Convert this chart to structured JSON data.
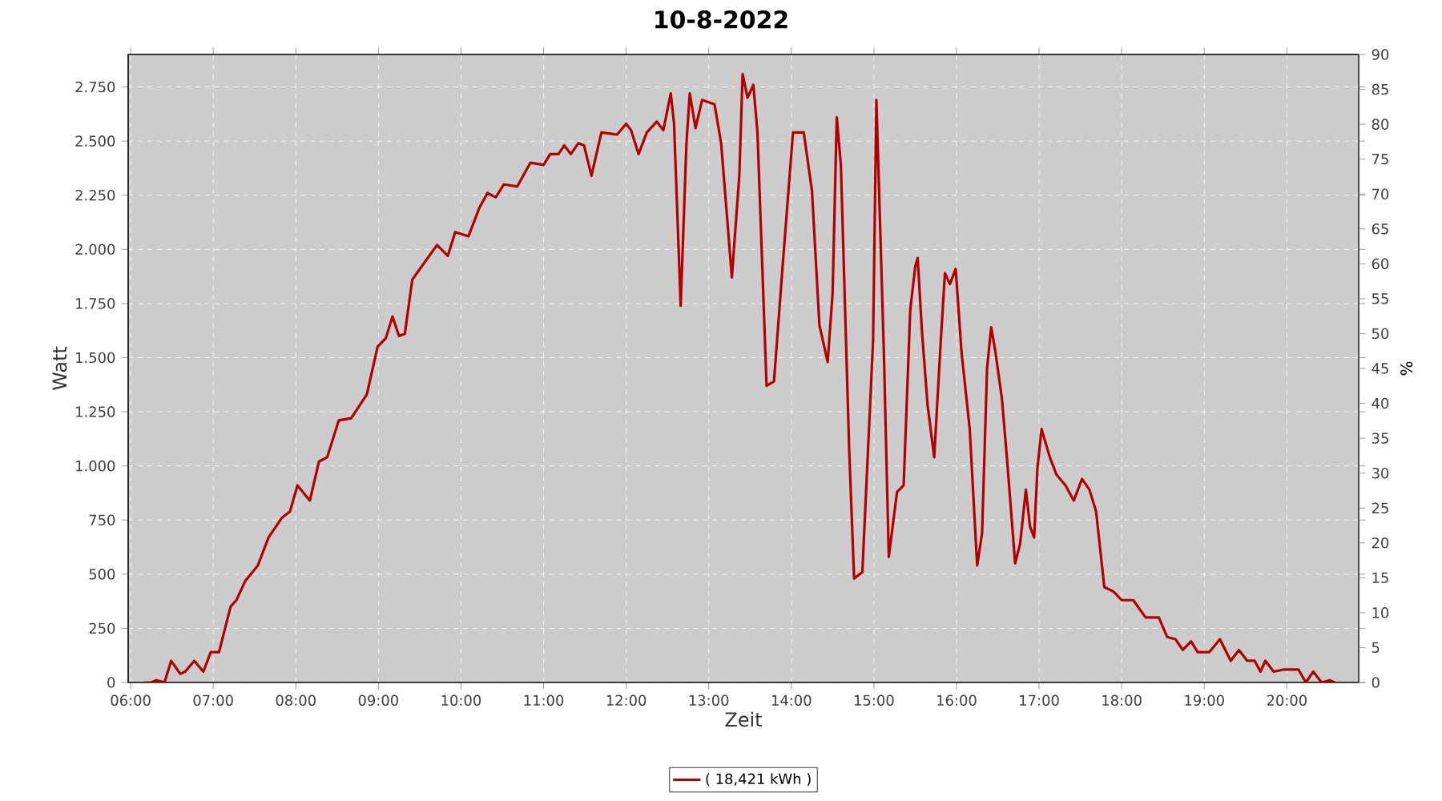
{
  "chart_data": {
    "type": "line",
    "title": "10-8-2022",
    "xlabel": "Zeit",
    "ylabel": "Watt",
    "y2label": "%",
    "x": [
      6.17,
      6.25,
      6.31,
      6.41,
      6.49,
      6.6,
      6.66,
      6.77,
      6.88,
      6.97,
      7.07,
      7.21,
      7.28,
      7.39,
      7.54,
      7.67,
      7.83,
      7.93,
      8.02,
      8.17,
      8.28,
      8.38,
      8.52,
      8.67,
      8.86,
      8.99,
      9.09,
      9.17,
      9.25,
      9.32,
      9.41,
      9.54,
      9.71,
      9.84,
      9.93,
      10.09,
      10.22,
      10.32,
      10.42,
      10.52,
      10.68,
      10.84,
      11.0,
      11.08,
      11.18,
      11.25,
      11.33,
      11.42,
      11.49,
      11.58,
      11.7,
      11.89,
      12.0,
      12.06,
      12.15,
      12.25,
      12.37,
      12.45,
      12.54,
      12.58,
      12.66,
      12.73,
      12.77,
      12.84,
      12.92,
      13.07,
      13.15,
      13.28,
      13.37,
      13.41,
      13.47,
      13.54,
      13.59,
      13.7,
      13.79,
      13.89,
      14.02,
      14.15,
      14.25,
      14.34,
      14.44,
      14.5,
      14.55,
      14.6,
      14.7,
      14.76,
      14.86,
      14.99,
      15.03,
      15.12,
      15.18,
      15.28,
      15.36,
      15.44,
      15.5,
      15.53,
      15.58,
      15.65,
      15.73,
      15.81,
      15.86,
      15.92,
      15.99,
      16.06,
      16.16,
      16.25,
      16.31,
      16.37,
      16.42,
      16.47,
      16.55,
      16.61,
      16.71,
      16.77,
      16.84,
      16.89,
      16.94,
      16.98,
      17.03,
      17.13,
      17.21,
      17.32,
      17.42,
      17.52,
      17.61,
      17.69,
      17.79,
      17.9,
      18.0,
      18.14,
      18.29,
      18.45,
      18.55,
      18.65,
      18.74,
      18.84,
      18.92,
      19.06,
      19.19,
      19.32,
      19.42,
      19.52,
      19.61,
      19.68,
      19.74,
      19.84,
      19.97,
      20.14,
      20.23,
      20.32,
      20.42,
      20.52,
      20.58
    ],
    "series": [
      {
        "name": "( 18,421 kWh )",
        "color": "#b00000",
        "values": [
          0,
          0,
          10,
          0,
          100,
          40,
          50,
          100,
          50,
          140,
          140,
          350,
          380,
          470,
          540,
          670,
          760,
          790,
          910,
          840,
          1020,
          1040,
          1210,
          1220,
          1330,
          1550,
          1590,
          1690,
          1600,
          1610,
          1860,
          1930,
          2020,
          1970,
          2080,
          2060,
          2190,
          2260,
          2240,
          2300,
          2290,
          2400,
          2390,
          2440,
          2440,
          2480,
          2440,
          2490,
          2480,
          2340,
          2540,
          2530,
          2580,
          2550,
          2440,
          2540,
          2590,
          2550,
          2720,
          2580,
          1740,
          2490,
          2720,
          2560,
          2690,
          2670,
          2490,
          1870,
          2340,
          2810,
          2700,
          2760,
          2540,
          1370,
          1390,
          1900,
          2540,
          2540,
          2270,
          1650,
          1480,
          1800,
          2610,
          2390,
          1080,
          480,
          510,
          1580,
          2690,
          1530,
          580,
          880,
          910,
          1720,
          1920,
          1960,
          1630,
          1280,
          1040,
          1580,
          1890,
          1840,
          1910,
          1530,
          1170,
          540,
          690,
          1450,
          1640,
          1530,
          1310,
          1040,
          550,
          640,
          890,
          720,
          670,
          990,
          1170,
          1040,
          960,
          910,
          840,
          940,
          890,
          790,
          440,
          420,
          380,
          380,
          300,
          300,
          210,
          200,
          150,
          190,
          140,
          140,
          200,
          100,
          150,
          100,
          100,
          50,
          100,
          50,
          60,
          60,
          0,
          50,
          0,
          10,
          0
        ]
      }
    ],
    "xlim": [
      5.97,
      20.87
    ],
    "ylim": [
      0,
      2900
    ],
    "y2lim": [
      0,
      90
    ],
    "xticks": [
      {
        "value": 6,
        "label": "06:00"
      },
      {
        "value": 7,
        "label": "07:00"
      },
      {
        "value": 8,
        "label": "08:00"
      },
      {
        "value": 9,
        "label": "09:00"
      },
      {
        "value": 10,
        "label": "10:00"
      },
      {
        "value": 11,
        "label": "11:00"
      },
      {
        "value": 12,
        "label": "12:00"
      },
      {
        "value": 13,
        "label": "13:00"
      },
      {
        "value": 14,
        "label": "14:00"
      },
      {
        "value": 15,
        "label": "15:00"
      },
      {
        "value": 16,
        "label": "16:00"
      },
      {
        "value": 17,
        "label": "17:00"
      },
      {
        "value": 18,
        "label": "18:00"
      },
      {
        "value": 19,
        "label": "19:00"
      },
      {
        "value": 20,
        "label": "20:00"
      }
    ],
    "yticks": [
      0,
      250,
      500,
      750,
      {
        "value": 1000,
        "label": "1.000"
      },
      {
        "value": 1250,
        "label": "1.250"
      },
      {
        "value": 1500,
        "label": "1.500"
      },
      {
        "value": 1750,
        "label": "1.750"
      },
      {
        "value": 2000,
        "label": "2.000"
      },
      {
        "value": 2250,
        "label": "2.250"
      },
      {
        "value": 2500,
        "label": "2.500"
      },
      {
        "value": 2750,
        "label": "2.750"
      }
    ],
    "y2ticks": [
      0,
      5,
      10,
      15,
      20,
      25,
      30,
      35,
      40,
      45,
      50,
      55,
      60,
      65,
      70,
      75,
      80,
      85,
      90
    ],
    "grid": true,
    "legend": "bottom"
  }
}
